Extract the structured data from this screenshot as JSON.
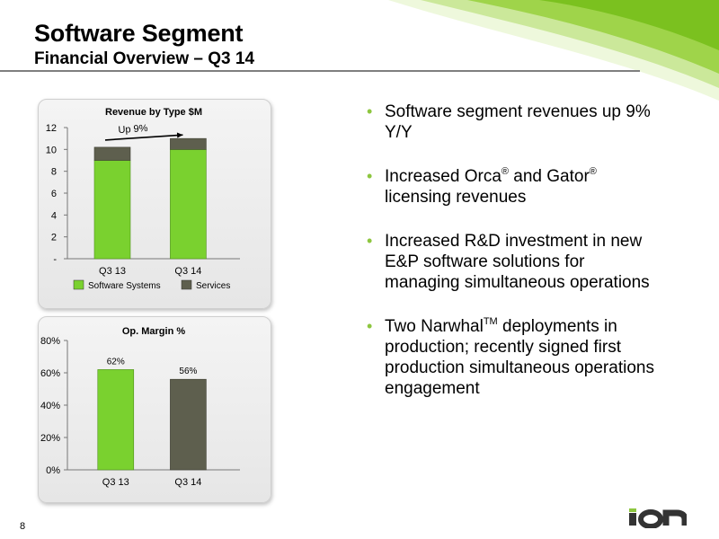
{
  "header": {
    "title": "Software Segment",
    "subtitle": "Financial Overview – Q3 14"
  },
  "chart_data": [
    {
      "type": "bar",
      "stacked": true,
      "title": "Revenue by Type $M",
      "categories": [
        "Q3 13",
        "Q3 14"
      ],
      "series": [
        {
          "name": "Software Systems",
          "values": [
            9.0,
            10.0
          ],
          "color": "#7ad12f"
        },
        {
          "name": "Services",
          "values": [
            1.2,
            1.0
          ],
          "color": "#5e5f4e"
        }
      ],
      "ylim": [
        0,
        12
      ],
      "yticks": [
        {
          "value": 0,
          "label": "-"
        },
        {
          "value": 2,
          "label": "2"
        },
        {
          "value": 4,
          "label": "4"
        },
        {
          "value": 6,
          "label": "6"
        },
        {
          "value": 8,
          "label": "8"
        },
        {
          "value": 10,
          "label": "10"
        },
        {
          "value": 12,
          "label": "12"
        }
      ],
      "grid": false,
      "legend": "bottom",
      "annotation": "Up 9%"
    },
    {
      "type": "bar",
      "title": "Op. Margin %",
      "categories": [
        "Q3 13",
        "Q3 14"
      ],
      "values": [
        62,
        56
      ],
      "data_labels": [
        "62%",
        "56%"
      ],
      "colors": [
        "#7ad12f",
        "#5e5f4e"
      ],
      "ylim": [
        0,
        80
      ],
      "yticks": [
        {
          "value": 0,
          "label": "0%"
        },
        {
          "value": 20,
          "label": "20%"
        },
        {
          "value": 40,
          "label": "40%"
        },
        {
          "value": 60,
          "label": "60%"
        },
        {
          "value": 80,
          "label": "80%"
        }
      ],
      "grid": false
    }
  ],
  "bullets": [
    {
      "parts": [
        "Software segment revenues up 9% Y/Y"
      ]
    },
    {
      "parts": [
        "Increased Orca",
        "®",
        " and Gator",
        "®",
        " licensing revenues"
      ]
    },
    {
      "parts": [
        "Increased R&D investment in new E&P software solutions for managing simultaneous operations"
      ]
    },
    {
      "parts": [
        "Two Narwhal",
        "TM",
        " deployments in production; recently signed first production simultaneous operations engagement"
      ]
    }
  ],
  "footer": {
    "page_number": "8",
    "logo_text": "ION"
  },
  "colors": {
    "accent": "#8dc63f",
    "software_bar": "#7ad12f",
    "services_bar": "#5e5f4e"
  }
}
